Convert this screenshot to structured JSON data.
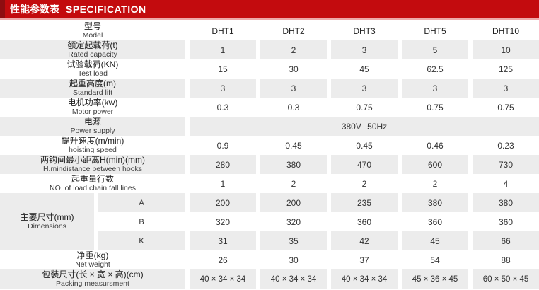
{
  "header": {
    "title_zh": "性能参数表",
    "title_en": "SPECIFICATION"
  },
  "columns": [
    "DHT1",
    "DHT2",
    "DHT3",
    "DHT5",
    "DHT10"
  ],
  "colors": {
    "header_red": "#c30b0e",
    "header_accent_dark_red": "#8e0d10",
    "header_underline_pink": "#eda9a9",
    "row_shade_gray": "#ececec"
  },
  "rows": [
    {
      "id": "model",
      "kind": "values",
      "header": true,
      "shaded": false,
      "label_zh": "型号",
      "label_en": "Model",
      "values": [
        "DHT1",
        "DHT2",
        "DHT3",
        "DHT5",
        "DHT10"
      ]
    },
    {
      "id": "rated-capacity",
      "kind": "values",
      "shaded": true,
      "label_zh": "额定起载荷(t)",
      "label_en": "Rated capacity",
      "values": [
        "1",
        "2",
        "3",
        "5",
        "10"
      ]
    },
    {
      "id": "test-load",
      "kind": "values",
      "shaded": false,
      "label_zh": "试验载荷(KN)",
      "label_en": "Test load",
      "values": [
        "15",
        "30",
        "45",
        "62.5",
        "125"
      ]
    },
    {
      "id": "standard-lift",
      "kind": "values",
      "shaded": true,
      "label_zh": "起重高度(m)",
      "label_en": "Standard lift",
      "values": [
        "3",
        "3",
        "3",
        "3",
        "3"
      ]
    },
    {
      "id": "motor-power",
      "kind": "values",
      "shaded": false,
      "label_zh": "电机功率(kw)",
      "label_en": "Motor power",
      "values": [
        "0.3",
        "0.3",
        "0.75",
        "0.75",
        "0.75"
      ]
    },
    {
      "id": "power-supply",
      "kind": "merged",
      "shaded": true,
      "label_zh": "电源",
      "label_en": "Power supply",
      "merged_value": "380V 50Hz"
    },
    {
      "id": "hoisting-speed",
      "kind": "values",
      "shaded": false,
      "label_zh": "提升速度(m/min)",
      "label_en": "hoisting speed",
      "values": [
        "0.9",
        "0.45",
        "0.45",
        "0.46",
        "0.23"
      ]
    },
    {
      "id": "min-hook-distance",
      "kind": "values",
      "shaded": true,
      "label_zh": "两钩间最小距离H(min)(mm)",
      "label_en": "H.mindistance between hooks",
      "values": [
        "280",
        "380",
        "470",
        "600",
        "730"
      ]
    },
    {
      "id": "fall-lines",
      "kind": "values",
      "shaded": false,
      "label_zh": "起重量行数",
      "label_en": "NO. of load chain fall lines",
      "values": [
        "1",
        "2",
        "2",
        "2",
        "4"
      ]
    },
    {
      "id": "dimensions",
      "kind": "group",
      "label_zh": "主要尺寸(mm)",
      "label_en": "Dimensions",
      "subrows": [
        {
          "key": "A",
          "shaded": true,
          "values": [
            "200",
            "200",
            "235",
            "380",
            "380"
          ]
        },
        {
          "key": "B",
          "shaded": false,
          "values": [
            "320",
            "320",
            "360",
            "360",
            "360"
          ]
        },
        {
          "key": "K",
          "shaded": true,
          "values": [
            "31",
            "35",
            "42",
            "45",
            "66"
          ]
        }
      ]
    },
    {
      "id": "net-weight",
      "kind": "values",
      "shaded": false,
      "label_zh": "净重(kg)",
      "label_en": "Net weight",
      "values": [
        "26",
        "30",
        "37",
        "54",
        "88"
      ]
    },
    {
      "id": "packing",
      "kind": "values",
      "shaded": true,
      "label_zh": "包装尺寸(长 × 宽 × 高)(cm)",
      "label_en": "Packing measursment",
      "values": [
        "40 × 34 × 34",
        "40 × 34 × 34",
        "40 × 34 × 34",
        "45 × 36 × 45",
        "60 × 50 × 45"
      ]
    }
  ]
}
